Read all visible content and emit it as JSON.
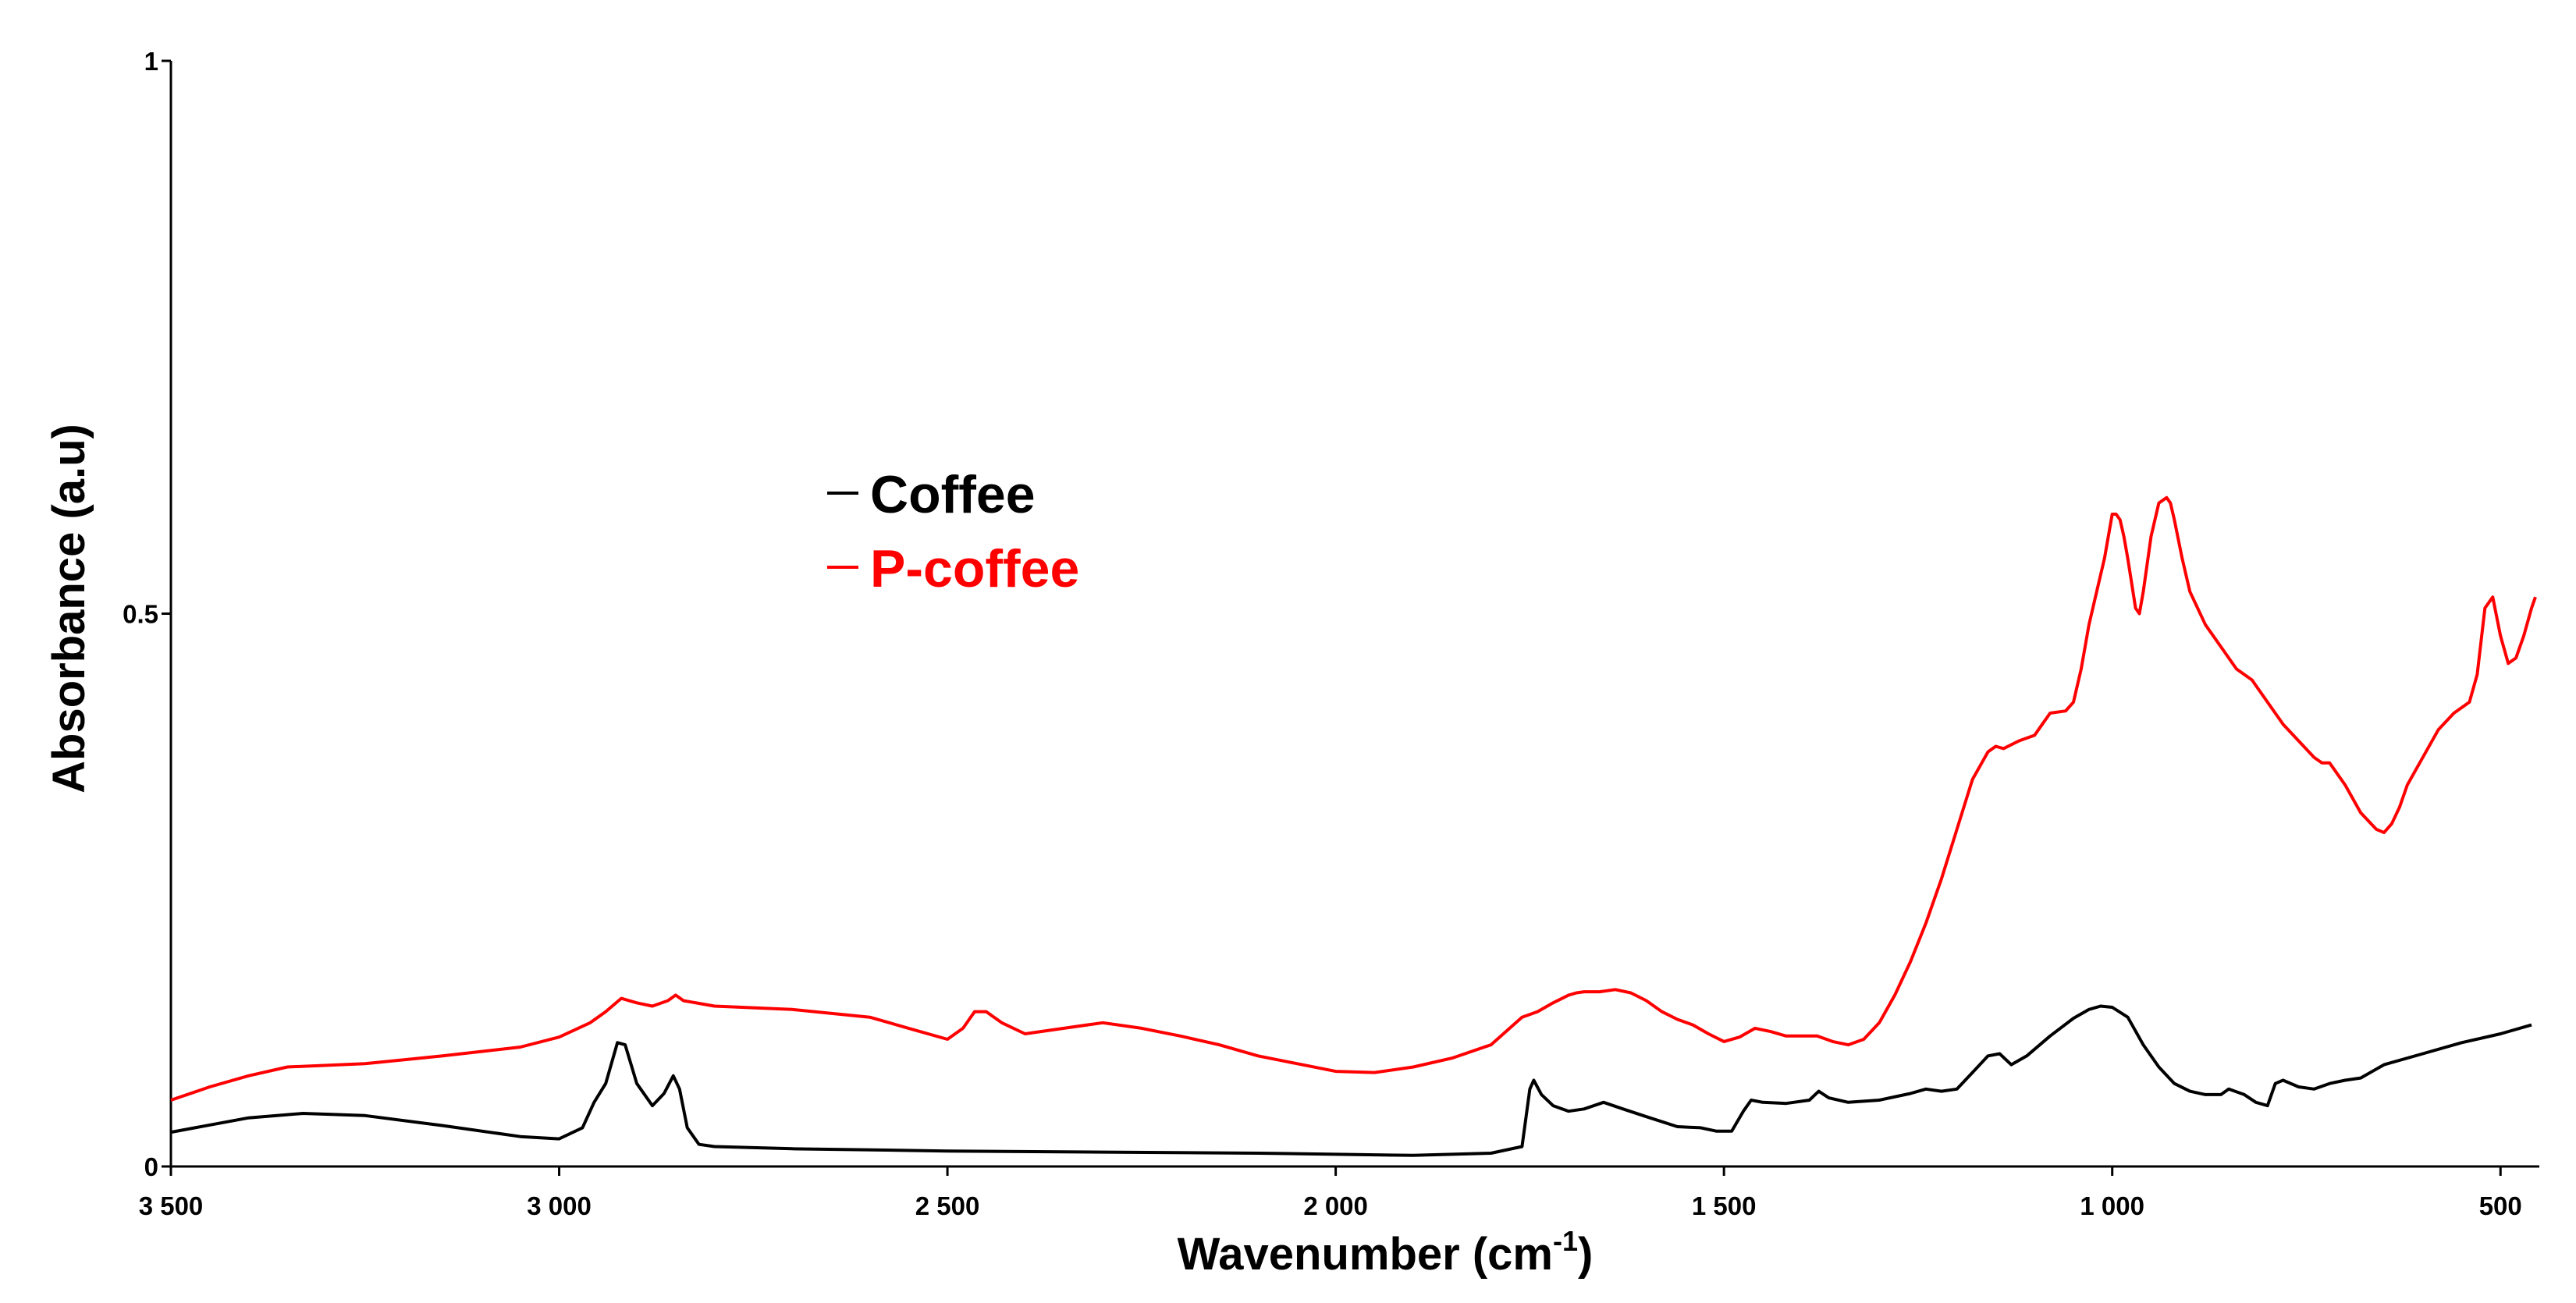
{
  "chart_data": {
    "type": "line",
    "title": "",
    "xlabel": "Wavenumber (cm",
    "xlabel_sup": "-1",
    "xlabel_end": ")",
    "ylabel": "Absorbance (a.u)",
    "xlim": [
      3500,
      450
    ],
    "ylim": [
      0,
      1
    ],
    "x_ticks": [
      3500,
      3000,
      2500,
      2000,
      1500,
      1000,
      500
    ],
    "x_tick_labels": [
      "3 500",
      "3 000",
      "2 500",
      "2 000",
      "1 500",
      "1 000",
      "500"
    ],
    "y_ticks": [
      0,
      0.5,
      1
    ],
    "y_tick_labels": [
      "0",
      "0.5",
      "1"
    ],
    "legend_position": "center-left",
    "series": [
      {
        "name": "Coffee",
        "color": "#000000",
        "x": [
          3500,
          3400,
          3330,
          3250,
          3150,
          3050,
          3000,
          2970,
          2955,
          2940,
          2925,
          2915,
          2900,
          2880,
          2865,
          2853,
          2845,
          2835,
          2820,
          2800,
          2700,
          2500,
          2300,
          2100,
          2000,
          1900,
          1800,
          1760,
          1750,
          1745,
          1735,
          1720,
          1700,
          1680,
          1655,
          1630,
          1600,
          1560,
          1530,
          1510,
          1490,
          1475,
          1465,
          1450,
          1420,
          1390,
          1378,
          1365,
          1340,
          1300,
          1260,
          1240,
          1220,
          1200,
          1180,
          1160,
          1145,
          1130,
          1110,
          1080,
          1050,
          1030,
          1015,
          1000,
          980,
          960,
          940,
          920,
          900,
          880,
          860,
          850,
          830,
          815,
          800,
          790,
          780,
          760,
          740,
          720,
          700,
          680,
          650,
          600,
          550,
          500,
          460
        ],
        "values": [
          0.031,
          0.044,
          0.048,
          0.046,
          0.037,
          0.027,
          0.025,
          0.035,
          0.058,
          0.075,
          0.112,
          0.11,
          0.075,
          0.055,
          0.066,
          0.082,
          0.07,
          0.035,
          0.02,
          0.018,
          0.016,
          0.014,
          0.013,
          0.012,
          0.011,
          0.01,
          0.012,
          0.018,
          0.07,
          0.078,
          0.065,
          0.055,
          0.05,
          0.052,
          0.058,
          0.052,
          0.045,
          0.036,
          0.035,
          0.032,
          0.032,
          0.05,
          0.06,
          0.058,
          0.057,
          0.06,
          0.068,
          0.062,
          0.058,
          0.06,
          0.066,
          0.07,
          0.068,
          0.07,
          0.085,
          0.1,
          0.102,
          0.092,
          0.1,
          0.118,
          0.134,
          0.142,
          0.145,
          0.144,
          0.135,
          0.11,
          0.09,
          0.075,
          0.068,
          0.065,
          0.065,
          0.07,
          0.065,
          0.058,
          0.055,
          0.075,
          0.078,
          0.072,
          0.07,
          0.075,
          0.078,
          0.08,
          0.092,
          0.102,
          0.112,
          0.12,
          0.128
        ]
      },
      {
        "name": "P-coffee",
        "color": "#ff0000",
        "x": [
          3500,
          3450,
          3400,
          3350,
          3250,
          3150,
          3050,
          3000,
          2960,
          2940,
          2920,
          2900,
          2880,
          2860,
          2850,
          2840,
          2800,
          2700,
          2600,
          2550,
          2500,
          2480,
          2465,
          2450,
          2430,
          2400,
          2350,
          2300,
          2250,
          2200,
          2150,
          2100,
          2050,
          2000,
          1950,
          1900,
          1850,
          1800,
          1760,
          1740,
          1720,
          1700,
          1690,
          1680,
          1660,
          1640,
          1620,
          1600,
          1580,
          1560,
          1540,
          1520,
          1500,
          1480,
          1460,
          1440,
          1420,
          1400,
          1380,
          1360,
          1340,
          1320,
          1300,
          1280,
          1260,
          1240,
          1220,
          1200,
          1180,
          1160,
          1150,
          1140,
          1120,
          1100,
          1090,
          1080,
          1060,
          1050,
          1040,
          1030,
          1020,
          1010,
          1000,
          995,
          990,
          985,
          980,
          970,
          965,
          960,
          955,
          950,
          940,
          930,
          925,
          920,
          910,
          900,
          880,
          860,
          840,
          820,
          800,
          780,
          760,
          740,
          730,
          720,
          700,
          680,
          660,
          650,
          640,
          630,
          620,
          600,
          580,
          560,
          540,
          530,
          520,
          510,
          500,
          490,
          480,
          470,
          460,
          455
        ],
        "values": [
          0.06,
          0.072,
          0.082,
          0.09,
          0.093,
          0.1,
          0.108,
          0.117,
          0.13,
          0.14,
          0.152,
          0.148,
          0.145,
          0.15,
          0.155,
          0.15,
          0.145,
          0.142,
          0.135,
          0.125,
          0.115,
          0.125,
          0.14,
          0.14,
          0.13,
          0.12,
          0.125,
          0.13,
          0.125,
          0.118,
          0.11,
          0.1,
          0.093,
          0.086,
          0.085,
          0.09,
          0.098,
          0.11,
          0.135,
          0.14,
          0.148,
          0.155,
          0.157,
          0.158,
          0.158,
          0.16,
          0.157,
          0.15,
          0.14,
          0.133,
          0.128,
          0.12,
          0.113,
          0.117,
          0.125,
          0.122,
          0.118,
          0.118,
          0.118,
          0.113,
          0.11,
          0.115,
          0.13,
          0.155,
          0.185,
          0.22,
          0.26,
          0.305,
          0.35,
          0.375,
          0.38,
          0.378,
          0.385,
          0.39,
          0.4,
          0.41,
          0.412,
          0.42,
          0.45,
          0.49,
          0.52,
          0.55,
          0.59,
          0.59,
          0.585,
          0.57,
          0.55,
          0.505,
          0.5,
          0.52,
          0.545,
          0.57,
          0.6,
          0.605,
          0.6,
          0.585,
          0.55,
          0.52,
          0.49,
          0.47,
          0.45,
          0.44,
          0.42,
          0.4,
          0.385,
          0.37,
          0.365,
          0.365,
          0.345,
          0.32,
          0.305,
          0.302,
          0.31,
          0.325,
          0.345,
          0.37,
          0.395,
          0.41,
          0.42,
          0.445,
          0.505,
          0.515,
          0.48,
          0.455,
          0.46,
          0.48,
          0.505,
          0.515
        ]
      }
    ]
  }
}
